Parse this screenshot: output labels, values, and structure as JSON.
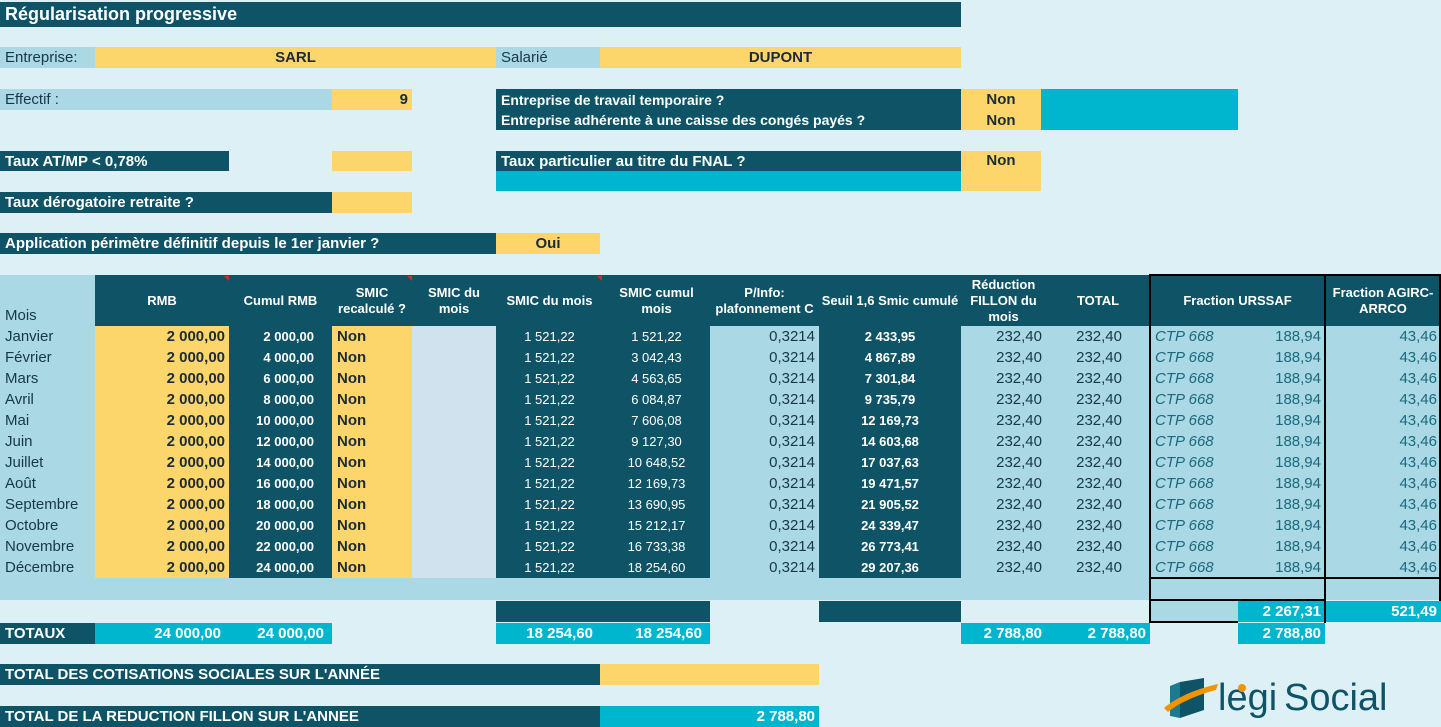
{
  "title": "Régularisation progressive",
  "entreprise": {
    "label": "Entreprise:",
    "value": "SARL"
  },
  "salarie": {
    "label": "Salarié",
    "value": "DUPONT"
  },
  "effectif": {
    "label": "Effectif :",
    "value": "9"
  },
  "questions": {
    "travail_temporaire": {
      "label": "Entreprise de travail temporaire ?",
      "value": "Non"
    },
    "caisse_conges": {
      "label": "Entreprise adhérente à une caisse des congés payés ?",
      "value": "Non"
    },
    "taux_atmp": {
      "label": "Taux AT/MP < 0,78%",
      "value": ""
    },
    "fnal": {
      "label": "Taux particulier au titre du FNAL ?",
      "value": "Non"
    },
    "taux_retraite": {
      "label": "Taux dérogatoire retraite ?",
      "value": ""
    },
    "perimetre": {
      "label": "Application périmètre définitif depuis le 1er janvier ?",
      "value": "Oui"
    }
  },
  "table": {
    "headers": {
      "mois": "Mois",
      "rmb": "RMB",
      "cumul_rmb": "Cumul RMB",
      "smic_recalcule": "SMIC recalculé ?",
      "smic_du_mois_a": "SMIC du mois",
      "smic_du_mois_b": "SMIC du mois",
      "smic_cumul": "SMIC cumul mois",
      "plafonnement": "P/Info: plafonnement C",
      "seuil": "Seuil 1,6 Smic cumulé",
      "reduction": "Réduction FILLON du mois",
      "total": "TOTAL",
      "fraction_urssaf": "Fraction URSSAF",
      "fraction_agirc": "Fraction AGIRC-ARRCO"
    },
    "rows": [
      {
        "mois": "Janvier",
        "rmb": "2 000,00",
        "cumul": "2 000,00",
        "recalc": "Non",
        "smic": "1 521,22",
        "smic_cumul": "1 521,22",
        "c": "0,3214",
        "seuil": "2 433,95",
        "reduction": "232,40",
        "total": "232,40",
        "ctp": "CTP 668",
        "urssaf": "188,94",
        "agirc": "43,46"
      },
      {
        "mois": "Février",
        "rmb": "2 000,00",
        "cumul": "4 000,00",
        "recalc": "Non",
        "smic": "1 521,22",
        "smic_cumul": "3 042,43",
        "c": "0,3214",
        "seuil": "4 867,89",
        "reduction": "232,40",
        "total": "232,40",
        "ctp": "CTP 668",
        "urssaf": "188,94",
        "agirc": "43,46"
      },
      {
        "mois": "Mars",
        "rmb": "2 000,00",
        "cumul": "6 000,00",
        "recalc": "Non",
        "smic": "1 521,22",
        "smic_cumul": "4 563,65",
        "c": "0,3214",
        "seuil": "7 301,84",
        "reduction": "232,40",
        "total": "232,40",
        "ctp": "CTP 668",
        "urssaf": "188,94",
        "agirc": "43,46"
      },
      {
        "mois": "Avril",
        "rmb": "2 000,00",
        "cumul": "8 000,00",
        "recalc": "Non",
        "smic": "1 521,22",
        "smic_cumul": "6 084,87",
        "c": "0,3214",
        "seuil": "9 735,79",
        "reduction": "232,40",
        "total": "232,40",
        "ctp": "CTP 668",
        "urssaf": "188,94",
        "agirc": "43,46"
      },
      {
        "mois": "Mai",
        "rmb": "2 000,00",
        "cumul": "10 000,00",
        "recalc": "Non",
        "smic": "1 521,22",
        "smic_cumul": "7 606,08",
        "c": "0,3214",
        "seuil": "12 169,73",
        "reduction": "232,40",
        "total": "232,40",
        "ctp": "CTP 668",
        "urssaf": "188,94",
        "agirc": "43,46"
      },
      {
        "mois": "Juin",
        "rmb": "2 000,00",
        "cumul": "12 000,00",
        "recalc": "Non",
        "smic": "1 521,22",
        "smic_cumul": "9 127,30",
        "c": "0,3214",
        "seuil": "14 603,68",
        "reduction": "232,40",
        "total": "232,40",
        "ctp": "CTP 668",
        "urssaf": "188,94",
        "agirc": "43,46"
      },
      {
        "mois": "Juillet",
        "rmb": "2 000,00",
        "cumul": "14 000,00",
        "recalc": "Non",
        "smic": "1 521,22",
        "smic_cumul": "10 648,52",
        "c": "0,3214",
        "seuil": "17 037,63",
        "reduction": "232,40",
        "total": "232,40",
        "ctp": "CTP 668",
        "urssaf": "188,94",
        "agirc": "43,46"
      },
      {
        "mois": "Août",
        "rmb": "2 000,00",
        "cumul": "16 000,00",
        "recalc": "Non",
        "smic": "1 521,22",
        "smic_cumul": "12 169,73",
        "c": "0,3214",
        "seuil": "19 471,57",
        "reduction": "232,40",
        "total": "232,40",
        "ctp": "CTP 668",
        "urssaf": "188,94",
        "agirc": "43,46"
      },
      {
        "mois": "Septembre",
        "rmb": "2 000,00",
        "cumul": "18 000,00",
        "recalc": "Non",
        "smic": "1 521,22",
        "smic_cumul": "13 690,95",
        "c": "0,3214",
        "seuil": "21 905,52",
        "reduction": "232,40",
        "total": "232,40",
        "ctp": "CTP 668",
        "urssaf": "188,94",
        "agirc": "43,46"
      },
      {
        "mois": "Octobre",
        "rmb": "2 000,00",
        "cumul": "20 000,00",
        "recalc": "Non",
        "smic": "1 521,22",
        "smic_cumul": "15 212,17",
        "c": "0,3214",
        "seuil": "24 339,47",
        "reduction": "232,40",
        "total": "232,40",
        "ctp": "CTP 668",
        "urssaf": "188,94",
        "agirc": "43,46"
      },
      {
        "mois": "Novembre",
        "rmb": "2 000,00",
        "cumul": "22 000,00",
        "recalc": "Non",
        "smic": "1 521,22",
        "smic_cumul": "16 733,38",
        "c": "0,3214",
        "seuil": "26 773,41",
        "reduction": "232,40",
        "total": "232,40",
        "ctp": "CTP 668",
        "urssaf": "188,94",
        "agirc": "43,46"
      },
      {
        "mois": "Décembre",
        "rmb": "2 000,00",
        "cumul": "24 000,00",
        "recalc": "Non",
        "smic": "1 521,22",
        "smic_cumul": "18 254,60",
        "c": "0,3214",
        "seuil": "29 207,36",
        "reduction": "232,40",
        "total": "232,40",
        "ctp": "CTP 668",
        "urssaf": "188,94",
        "agirc": "43,46"
      }
    ],
    "fraction_totals": {
      "urssaf": "2 267,31",
      "agirc": "521,49"
    },
    "totaux": {
      "label": "TOTAUX",
      "rmb": "24 000,00",
      "cumul": "24 000,00",
      "smic": "18 254,60",
      "smic_cumul": "18 254,60",
      "reduction": "2 788,80",
      "total": "2 788,80",
      "fraction": "2 788,80"
    }
  },
  "summary": {
    "cotisations": {
      "label": "TOTAL DES COTISATIONS SOCIALES SUR L'ANNÉE",
      "value": ""
    },
    "fillon": {
      "label": "TOTAL DE LA REDUCTION FILLON SUR L'ANNEE",
      "value": "2 788,80"
    }
  },
  "logo": {
    "part1": "legi",
    "part2": "Social",
    "color_dark": "#0f5466",
    "color_accent": "#f29400"
  },
  "colors": {
    "dark": "#0f5466",
    "yellow": "#fdd66b",
    "light_blue": "#aad8e4",
    "cyan": "#00b6cf",
    "background": "#dcf0f6"
  }
}
